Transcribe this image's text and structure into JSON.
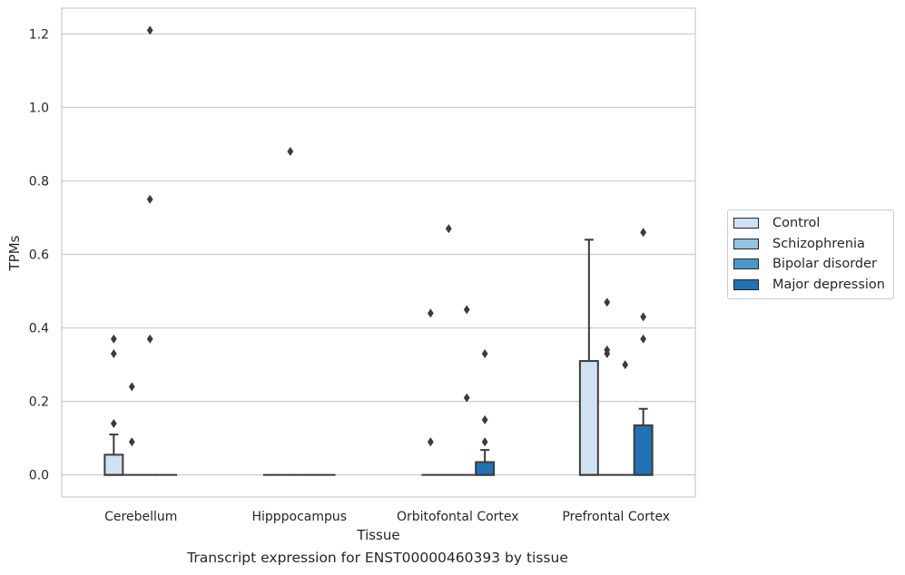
{
  "chart_data": {
    "type": "boxplot",
    "title": "",
    "xlabel": "Tissue",
    "ylabel": "TPMs",
    "caption": "Transcript expression for ENST00000460393 by tissue",
    "ylim": [
      -0.06,
      1.27
    ],
    "yticks": [
      0.0,
      0.2,
      0.4,
      0.6,
      0.8,
      1.0,
      1.2
    ],
    "ytick_labels": [
      "0.0",
      "0.2",
      "0.4",
      "0.6",
      "0.8",
      "1.0",
      "1.2"
    ],
    "grid": "horizontal",
    "legend_position": "right",
    "categories": [
      "Cerebellum",
      "Hipppocampus",
      "Orbitofontal Cortex",
      "Prefrontal Cortex"
    ],
    "series": [
      {
        "name": "Control",
        "color": "#d0e1f2",
        "boxes": [
          {
            "q1": 0.0,
            "median": 0.0,
            "q3": 0.055,
            "whisker_low": 0.0,
            "whisker_high": 0.11,
            "outliers": [
              0.14,
              0.33,
              0.37
            ]
          },
          {
            "q1": 0.0,
            "median": 0.0,
            "q3": 0.0,
            "whisker_low": 0.0,
            "whisker_high": 0.0,
            "outliers": []
          },
          {
            "q1": 0.0,
            "median": 0.0,
            "q3": 0.0,
            "whisker_low": 0.0,
            "whisker_high": 0.0,
            "outliers": [
              0.09,
              0.44
            ]
          },
          {
            "q1": 0.0,
            "median": 0.0,
            "q3": 0.31,
            "whisker_low": 0.0,
            "whisker_high": 0.64,
            "outliers": []
          }
        ]
      },
      {
        "name": "Schizophrenia",
        "color": "#94c4df",
        "boxes": [
          {
            "q1": 0.0,
            "median": 0.0,
            "q3": 0.0,
            "whisker_low": 0.0,
            "whisker_high": 0.0,
            "outliers": [
              0.09,
              0.24
            ]
          },
          {
            "q1": 0.0,
            "median": 0.0,
            "q3": 0.0,
            "whisker_low": 0.0,
            "whisker_high": 0.0,
            "outliers": [
              0.88
            ]
          },
          {
            "q1": 0.0,
            "median": 0.0,
            "q3": 0.0,
            "whisker_low": 0.0,
            "whisker_high": 0.0,
            "outliers": [
              0.67
            ]
          },
          {
            "q1": 0.0,
            "median": 0.0,
            "q3": 0.0,
            "whisker_low": 0.0,
            "whisker_high": 0.0,
            "outliers": [
              0.33,
              0.34,
              0.47
            ]
          }
        ]
      },
      {
        "name": "Bipolar disorder",
        "color": "#4a98c9",
        "boxes": [
          {
            "q1": 0.0,
            "median": 0.0,
            "q3": 0.0,
            "whisker_low": 0.0,
            "whisker_high": 0.0,
            "outliers": [
              0.37,
              0.75,
              1.21
            ]
          },
          {
            "q1": 0.0,
            "median": 0.0,
            "q3": 0.0,
            "whisker_low": 0.0,
            "whisker_high": 0.0,
            "outliers": []
          },
          {
            "q1": 0.0,
            "median": 0.0,
            "q3": 0.0,
            "whisker_low": 0.0,
            "whisker_high": 0.0,
            "outliers": [
              0.21,
              0.45
            ]
          },
          {
            "q1": 0.0,
            "median": 0.0,
            "q3": 0.0,
            "whisker_low": 0.0,
            "whisker_high": 0.0,
            "outliers": [
              0.3
            ]
          }
        ]
      },
      {
        "name": "Major depression",
        "color": "#2171b5",
        "boxes": [
          {
            "q1": 0.0,
            "median": 0.0,
            "q3": 0.0,
            "whisker_low": 0.0,
            "whisker_high": 0.0,
            "outliers": []
          },
          {
            "q1": 0.0,
            "median": 0.0,
            "q3": 0.0,
            "whisker_low": 0.0,
            "whisker_high": 0.0,
            "outliers": []
          },
          {
            "q1": 0.0,
            "median": 0.0,
            "q3": 0.035,
            "whisker_low": 0.0,
            "whisker_high": 0.068,
            "outliers": [
              0.09,
              0.15,
              0.33
            ]
          },
          {
            "q1": 0.0,
            "median": 0.0,
            "q3": 0.135,
            "whisker_low": 0.0,
            "whisker_high": 0.18,
            "outliers": [
              0.37,
              0.43,
              0.66
            ]
          }
        ]
      }
    ]
  }
}
